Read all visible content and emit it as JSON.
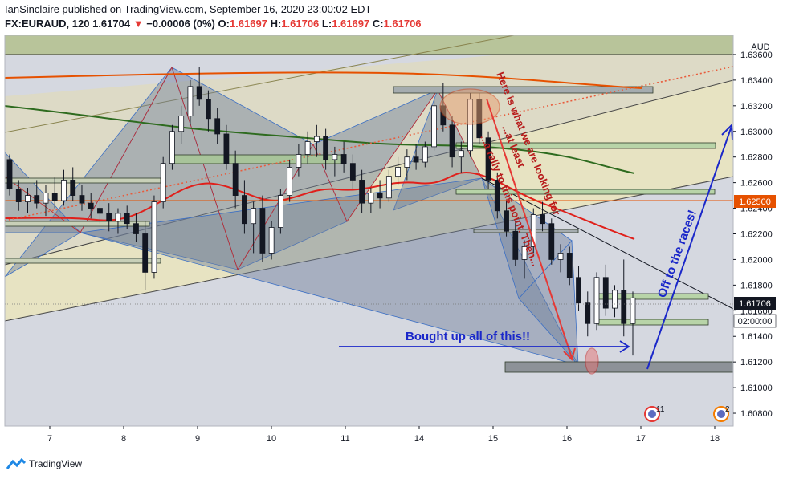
{
  "header": {
    "line1": "IanSinclaire published on TradingView.com, September 16, 2020 23:00:02 EDT",
    "symbol": "FX:EURAUD, 120",
    "last": "1.61704",
    "change": "−0.00006 (0%)",
    "o_label": "O:",
    "o_val": "1.61697",
    "h_label": "H:",
    "h_val": "1.61706",
    "l_label": "L:",
    "l_val": "1.61697",
    "c_label": "C:",
    "c_val": "1.61706"
  },
  "chart_data": {
    "type": "candlestick",
    "currency": "AUD",
    "y_ticks": [
      "1.63600",
      "1.63400",
      "1.63200",
      "1.63000",
      "1.62800",
      "1.62600",
      "1.62400",
      "1.62200",
      "1.62000",
      "1.61800",
      "1.61600",
      "1.61400",
      "1.61200",
      "1.61000",
      "1.60800"
    ],
    "ylim": [
      1.607,
      1.6375
    ],
    "x_ticks": [
      "7",
      "8",
      "9",
      "10",
      "11",
      "14",
      "15",
      "16",
      "17",
      "18"
    ],
    "price_tag": "1.61706",
    "level_tag": "1.62500",
    "countdown": "02:00:00",
    "annotations": {
      "looking": "Here is what we are looking for",
      "least": "...at least",
      "rally": "...a rally to this point. Then...",
      "bought": "Bought up all of this!!",
      "races": "Off to the races!"
    },
    "event_badges": [
      "11",
      "2"
    ],
    "candles": [
      [
        1.6278,
        1.6282,
        1.625,
        1.6255
      ],
      [
        1.6255,
        1.6262,
        1.6238,
        1.6245
      ],
      [
        1.6245,
        1.6256,
        1.6236,
        1.625
      ],
      [
        1.625,
        1.6262,
        1.624,
        1.6244
      ],
      [
        1.6244,
        1.6258,
        1.6234,
        1.6252
      ],
      [
        1.6252,
        1.6264,
        1.624,
        1.6246
      ],
      [
        1.6246,
        1.627,
        1.6242,
        1.6262
      ],
      [
        1.6262,
        1.6272,
        1.6246,
        1.625
      ],
      [
        1.625,
        1.6258,
        1.6238,
        1.6244
      ],
      [
        1.6244,
        1.6252,
        1.6232,
        1.624
      ],
      [
        1.624,
        1.625,
        1.6228,
        1.6236
      ],
      [
        1.6236,
        1.6244,
        1.6222,
        1.623
      ],
      [
        1.623,
        1.624,
        1.622,
        1.6236
      ],
      [
        1.6236,
        1.6242,
        1.6224,
        1.6228
      ],
      [
        1.6228,
        1.6236,
        1.6214,
        1.622
      ],
      [
        1.622,
        1.623,
        1.6176,
        1.619
      ],
      [
        1.619,
        1.625,
        1.6185,
        1.6245
      ],
      [
        1.6245,
        1.628,
        1.624,
        1.6275
      ],
      [
        1.6275,
        1.6305,
        1.627,
        1.63
      ],
      [
        1.63,
        1.632,
        1.629,
        1.6312
      ],
      [
        1.6312,
        1.634,
        1.6305,
        1.6335
      ],
      [
        1.6335,
        1.635,
        1.632,
        1.6325
      ],
      [
        1.6325,
        1.6332,
        1.63,
        1.631
      ],
      [
        1.631,
        1.6318,
        1.629,
        1.6298
      ],
      [
        1.6298,
        1.6305,
        1.627,
        1.6275
      ],
      [
        1.6275,
        1.6285,
        1.624,
        1.625
      ],
      [
        1.625,
        1.6262,
        1.622,
        1.6228
      ],
      [
        1.6228,
        1.6245,
        1.6205,
        1.624
      ],
      [
        1.624,
        1.625,
        1.6198,
        1.6205
      ],
      [
        1.6205,
        1.623,
        1.62,
        1.6225
      ],
      [
        1.6225,
        1.6255,
        1.622,
        1.625
      ],
      [
        1.625,
        1.6278,
        1.6245,
        1.6272
      ],
      [
        1.6272,
        1.629,
        1.6265,
        1.6282
      ],
      [
        1.6282,
        1.63,
        1.6275,
        1.6292
      ],
      [
        1.6292,
        1.6305,
        1.628,
        1.6296
      ],
      [
        1.6296,
        1.6302,
        1.627,
        1.6278
      ],
      [
        1.6278,
        1.6288,
        1.6265,
        1.6282
      ],
      [
        1.6282,
        1.6292,
        1.6268,
        1.6275
      ],
      [
        1.6275,
        1.6282,
        1.6255,
        1.6262
      ],
      [
        1.6262,
        1.627,
        1.6236,
        1.6244
      ],
      [
        1.6244,
        1.6256,
        1.6236,
        1.6252
      ],
      [
        1.6252,
        1.6262,
        1.624,
        1.6248
      ],
      [
        1.6248,
        1.627,
        1.6245,
        1.6265
      ],
      [
        1.6265,
        1.628,
        1.6258,
        1.6272
      ],
      [
        1.6272,
        1.6286,
        1.6262,
        1.628
      ],
      [
        1.628,
        1.629,
        1.627,
        1.6276
      ],
      [
        1.6276,
        1.6292,
        1.6272,
        1.6288
      ],
      [
        1.6288,
        1.6325,
        1.6285,
        1.632
      ],
      [
        1.632,
        1.6338,
        1.63,
        1.6305
      ],
      [
        1.6305,
        1.6312,
        1.6272,
        1.628
      ],
      [
        1.628,
        1.6292,
        1.6268,
        1.6285
      ],
      [
        1.6285,
        1.633,
        1.628,
        1.6325
      ],
      [
        1.6325,
        1.633,
        1.629,
        1.6295
      ],
      [
        1.6295,
        1.63,
        1.6255,
        1.6262
      ],
      [
        1.6262,
        1.6268,
        1.6232,
        1.6238
      ],
      [
        1.6238,
        1.6246,
        1.6218,
        1.6222
      ],
      [
        1.6222,
        1.623,
        1.6195,
        1.62
      ],
      [
        1.62,
        1.6215,
        1.6185,
        1.621
      ],
      [
        1.621,
        1.624,
        1.6205,
        1.6235
      ],
      [
        1.6235,
        1.6245,
        1.6222,
        1.6228
      ],
      [
        1.6228,
        1.6232,
        1.6196,
        1.62
      ],
      [
        1.62,
        1.6212,
        1.619,
        1.6205
      ],
      [
        1.6205,
        1.621,
        1.618,
        1.6186
      ],
      [
        1.6186,
        1.6195,
        1.616,
        1.6166
      ],
      [
        1.6166,
        1.6175,
        1.614,
        1.615
      ],
      [
        1.615,
        1.619,
        1.6145,
        1.6186
      ],
      [
        1.6186,
        1.6196,
        1.6156,
        1.6162
      ],
      [
        1.6162,
        1.618,
        1.6155,
        1.6176
      ],
      [
        1.6176,
        1.62,
        1.614,
        1.615
      ],
      [
        1.615,
        1.6175,
        1.6125,
        1.617
      ]
    ]
  }
}
